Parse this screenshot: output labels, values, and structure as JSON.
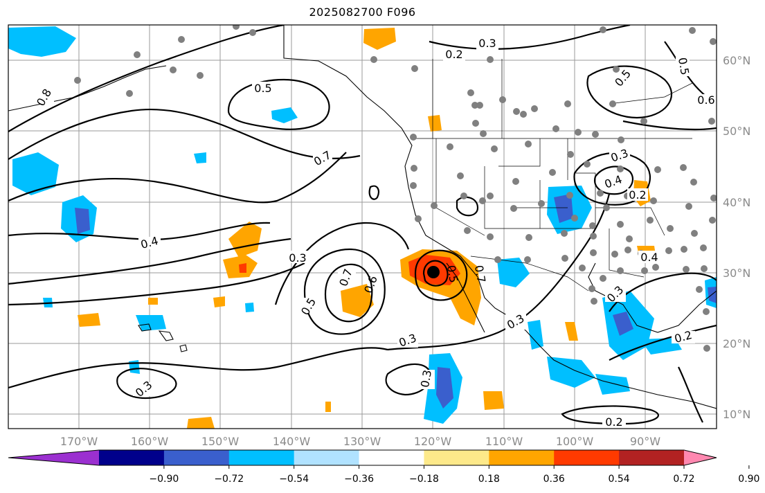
{
  "title": "2025082700 F096",
  "lat_labels": [
    "60°N",
    "50°N",
    "40°N",
    "30°N",
    "20°N",
    "10°N"
  ],
  "lon_labels": [
    "170°W",
    "160°W",
    "150°W",
    "140°W",
    "130°W",
    "120°W",
    "110°W",
    "100°W",
    "90°W"
  ],
  "colorbar": {
    "ticks": [
      "−0.90",
      "−0.72",
      "−0.54",
      "−0.36",
      "−0.18",
      "0.18",
      "0.36",
      "0.54",
      "0.72",
      "0.90"
    ],
    "colors": [
      "#9b30d0",
      "#00008b",
      "#3a5fcd",
      "#00bfff",
      "#b0e2ff",
      "#ffffff",
      "#fde98a",
      "#ffa500",
      "#ff3a00",
      "#b22222",
      "#ff88b0"
    ]
  },
  "contour_labels": [
    "0.3",
    "0.2",
    "0.5",
    "0.6",
    "0.5",
    "0.8",
    "0.7",
    "0.5",
    "0.7",
    "0.4",
    "0.3",
    "0.5",
    "0.7",
    "0.6",
    "0.3",
    "0.3",
    "0.3",
    "0.4",
    "0.2",
    "0.3",
    "0.4",
    "0.3",
    "0.2",
    "0.3",
    "0.2",
    "0.5",
    "0.2"
  ],
  "max_marker": "black-dot",
  "station_marker_color": "#808080"
}
